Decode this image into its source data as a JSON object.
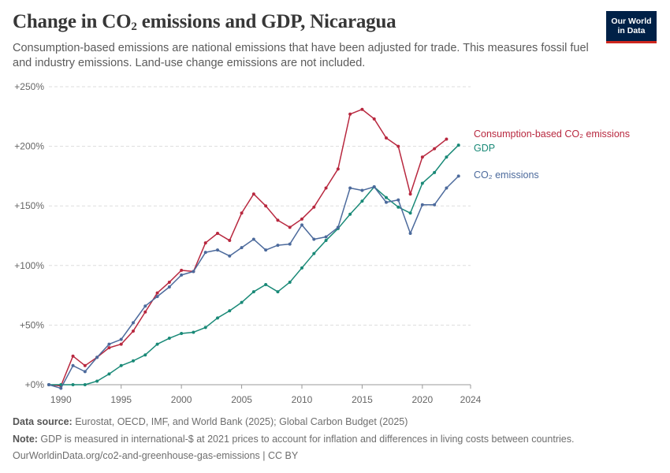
{
  "header": {
    "title_prefix": "Change in CO",
    "title_sub": "2",
    "title_suffix": " emissions and GDP, Nicaragua",
    "subtitle": "Consumption-based emissions are national emissions that have been adjusted for trade. This measures fossil fuel and industry emissions. Land-use change emissions are not included.",
    "logo_line1": "Our World",
    "logo_line2": "in Data"
  },
  "footer": {
    "source_label": "Data source:",
    "source_text": " Eurostat, OECD, IMF, and World Bank (2025); Global Carbon Budget (2025)",
    "note_label": "Note:",
    "note_text": " GDP is measured in international-$ at 2021 prices to account for inflation and differences in living costs between countries.",
    "url": "OurWorldinData.org/co2-and-greenhouse-gas-emissions | CC BY"
  },
  "chart_data": {
    "type": "line",
    "x_ticks": [
      1990,
      1995,
      2000,
      2005,
      2010,
      2015,
      2020,
      2024
    ],
    "y_ticks": [
      0,
      50,
      100,
      150,
      200,
      250
    ],
    "y_tick_labels": [
      "+0%",
      "+50%",
      "+100%",
      "+150%",
      "+200%",
      "+250%"
    ],
    "xlim": [
      1989,
      2024
    ],
    "ylim": [
      0,
      250
    ],
    "grid": "horizontal dashed",
    "legend": "right, labels at line ends",
    "series": [
      {
        "name": "Consumption-based CO₂ emissions",
        "color": "#b8283f",
        "x": [
          1989,
          1990,
          1991,
          1992,
          1993,
          1994,
          1995,
          1996,
          1997,
          1998,
          1999,
          2000,
          2001,
          2002,
          2003,
          2004,
          2005,
          2006,
          2007,
          2008,
          2009,
          2010,
          2011,
          2012,
          2013,
          2014,
          2015,
          2016,
          2017,
          2018,
          2019,
          2020,
          2021,
          2022,
          2023
        ],
        "y": [
          0,
          -1,
          24,
          16,
          23,
          31,
          34,
          45,
          61,
          77,
          86,
          96,
          95,
          119,
          127,
          121,
          144,
          160,
          150,
          138,
          132,
          139,
          149,
          165,
          181,
          227,
          231,
          223,
          207,
          200,
          160,
          191,
          198,
          206,
          null
        ]
      },
      {
        "name": "GDP",
        "color": "#198977",
        "x": [
          1989,
          1990,
          1991,
          1992,
          1993,
          1994,
          1995,
          1996,
          1997,
          1998,
          1999,
          2000,
          2001,
          2002,
          2003,
          2004,
          2005,
          2006,
          2007,
          2008,
          2009,
          2010,
          2011,
          2012,
          2013,
          2014,
          2015,
          2016,
          2017,
          2018,
          2019,
          2020,
          2021,
          2022,
          2023,
          2024
        ],
        "y": [
          0,
          0,
          0,
          0,
          3,
          9,
          16,
          20,
          25,
          34,
          39,
          43,
          44,
          48,
          56,
          62,
          69,
          78,
          84,
          78,
          86,
          98,
          110,
          121,
          131,
          143,
          154,
          166,
          157,
          149,
          144,
          169,
          178,
          191,
          201,
          null
        ]
      },
      {
        "name": "CO₂ emissions",
        "color": "#4c6a9c",
        "x": [
          1989,
          1990,
          1991,
          1992,
          1993,
          1994,
          1995,
          1996,
          1997,
          1998,
          1999,
          2000,
          2001,
          2002,
          2003,
          2004,
          2005,
          2006,
          2007,
          2008,
          2009,
          2010,
          2011,
          2012,
          2013,
          2014,
          2015,
          2016,
          2017,
          2018,
          2019,
          2020,
          2021,
          2022,
          2023,
          2024
        ],
        "y": [
          0,
          -3,
          16,
          11,
          23,
          34,
          38,
          52,
          66,
          74,
          82,
          92,
          95,
          111,
          113,
          108,
          115,
          122,
          113,
          117,
          118,
          134,
          122,
          124,
          132,
          165,
          163,
          166,
          153,
          155,
          127,
          151,
          151,
          165,
          175,
          null
        ]
      }
    ]
  }
}
